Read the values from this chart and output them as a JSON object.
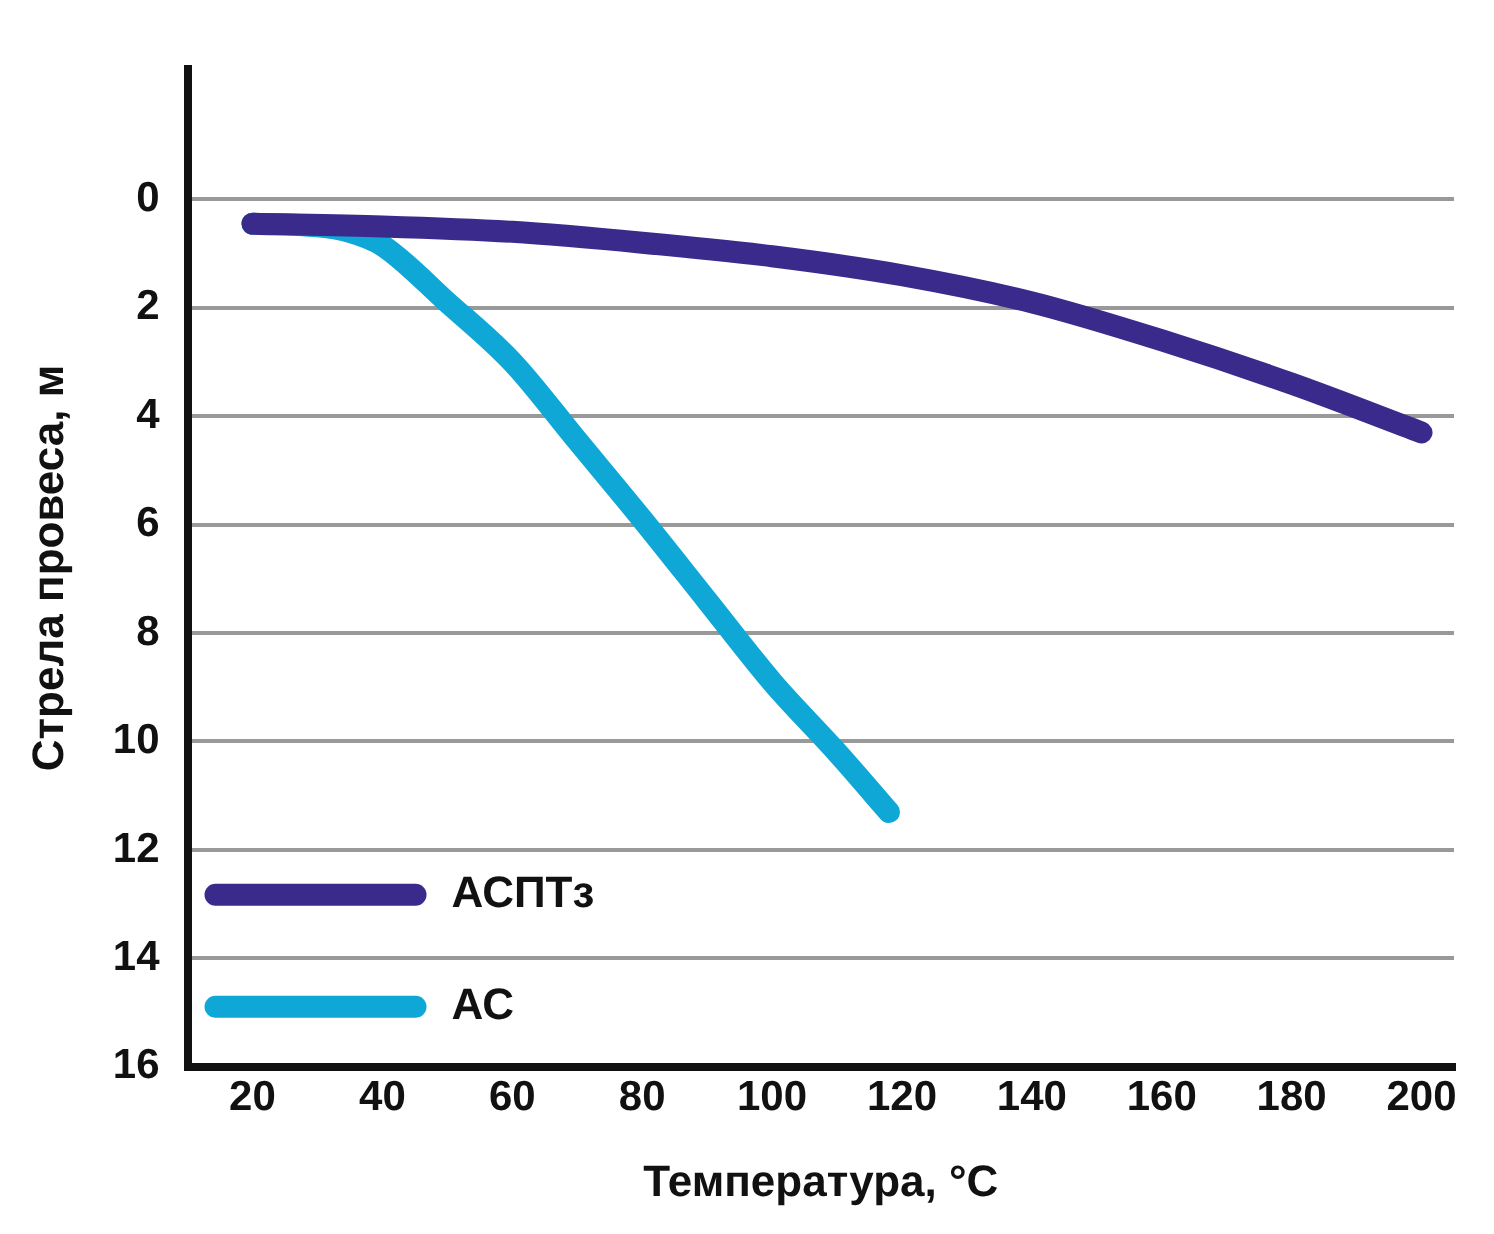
{
  "chart_data": {
    "type": "line",
    "xlabel": "Температура, °C",
    "ylabel": "Стрела провеса, м",
    "xlim": [
      10,
      205
    ],
    "xticks": [
      20,
      40,
      60,
      80,
      100,
      120,
      140,
      160,
      180,
      200
    ],
    "ylim": [
      16,
      -2.4
    ],
    "yticks": [
      0,
      2,
      4,
      6,
      8,
      10,
      12,
      14,
      16
    ],
    "grid": "y",
    "legend": "bottom left",
    "marker": "none",
    "line_style": "solid",
    "series": [
      {
        "name": "АСПТз",
        "color": "#3a2a8c",
        "x": [
          20,
          40,
          60,
          80,
          100,
          120,
          140,
          160,
          180,
          200
        ],
        "values": [
          0.45,
          0.5,
          0.6,
          0.8,
          1.05,
          1.4,
          1.9,
          2.6,
          3.4,
          4.3
        ]
      },
      {
        "name": "АС",
        "color": "#0fa7d6",
        "x": [
          20,
          30,
          35,
          40,
          50,
          60,
          70,
          80,
          90,
          100,
          110,
          118
        ],
        "values": [
          0.45,
          0.5,
          0.6,
          0.85,
          1.9,
          3.0,
          4.45,
          5.9,
          7.4,
          8.9,
          10.2,
          11.3
        ]
      }
    ]
  }
}
